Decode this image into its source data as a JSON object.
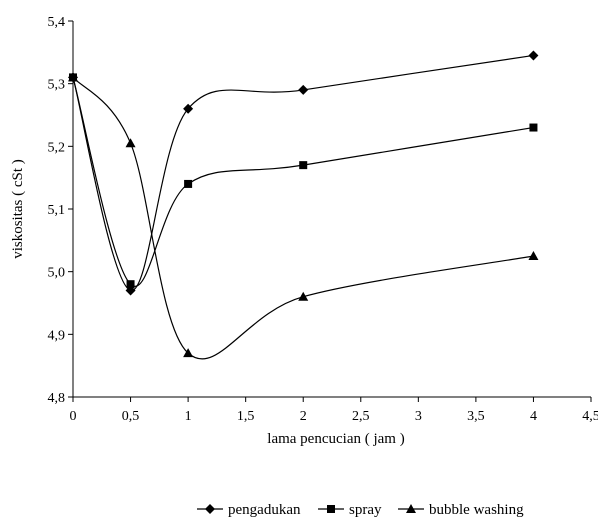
{
  "chart_data": {
    "type": "line",
    "title": "",
    "xlabel": "lama pencucian ( jam )",
    "ylabel": "viskositas ( cSt )",
    "xlim": [
      0,
      4.5
    ],
    "ylim": [
      4.8,
      5.4
    ],
    "x_ticks": [
      "0",
      "0,5",
      "1",
      "1,5",
      "2",
      "2,5",
      "3",
      "3,5",
      "4",
      "4,5"
    ],
    "y_ticks": [
      "4,8",
      "4,9",
      "5,0",
      "5,1",
      "5,2",
      "5,3",
      "5,4"
    ],
    "grid": false,
    "legend_position": "bottom",
    "smooth": true,
    "series": [
      {
        "name": "pengadukan",
        "marker": "diamond",
        "x": [
          0,
          0.5,
          1,
          2,
          4
        ],
        "y": [
          5.31,
          4.97,
          5.26,
          5.29,
          5.345
        ]
      },
      {
        "name": "spray",
        "marker": "square",
        "x": [
          0,
          0.5,
          1,
          2,
          4
        ],
        "y": [
          5.31,
          4.98,
          5.14,
          5.17,
          5.23
        ]
      },
      {
        "name": "bubble washing",
        "marker": "triangle",
        "x": [
          0,
          0.5,
          1,
          2,
          4
        ],
        "y": [
          5.31,
          5.205,
          4.87,
          4.96,
          5.025
        ]
      }
    ]
  }
}
